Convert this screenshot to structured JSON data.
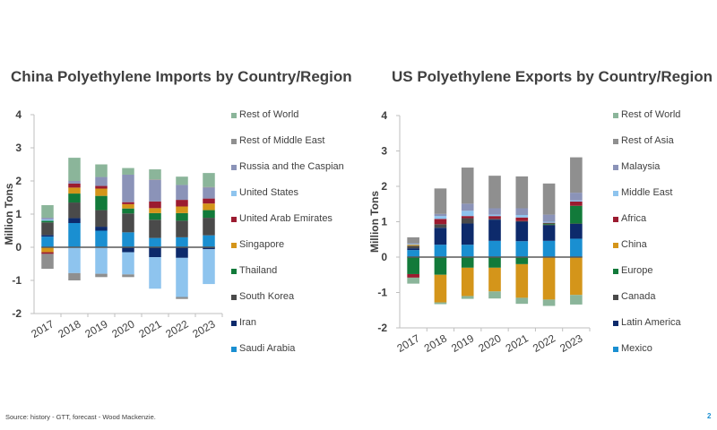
{
  "chart_data": [
    {
      "type": "bar",
      "stacked": true,
      "title": "China Polyethylene Imports by Country/Region",
      "ylabel": "Million Tons",
      "xlabel": "",
      "ylim": [
        -2,
        4
      ],
      "yticks": [
        "-2",
        "-1",
        "0",
        "1",
        "2",
        "3",
        "4"
      ],
      "grid": false,
      "legend_position": "right",
      "categories": [
        "2017",
        "2018",
        "2019",
        "2020",
        "2021",
        "2022",
        "2023"
      ],
      "series": [
        {
          "name": "Saudi Arabia",
          "color": "#1a8fd1",
          "values": [
            0.32,
            0.73,
            0.5,
            0.45,
            0.28,
            0.3,
            0.36
          ]
        },
        {
          "name": "Iran",
          "color": "#0d2a6b",
          "values": [
            0.05,
            0.15,
            0.12,
            -0.15,
            -0.3,
            -0.32,
            -0.06
          ]
        },
        {
          "name": "South Korea",
          "color": "#4a4a4a",
          "values": [
            0.38,
            0.47,
            0.5,
            0.57,
            0.55,
            0.5,
            0.53
          ]
        },
        {
          "name": "Thailand",
          "color": "#127a3a",
          "values": [
            0.05,
            0.27,
            0.43,
            0.15,
            0.2,
            0.23,
            0.23
          ]
        },
        {
          "name": "Singapore",
          "color": "#d4951a",
          "values": [
            -0.15,
            0.18,
            0.22,
            0.13,
            0.15,
            0.2,
            0.2
          ]
        },
        {
          "name": "United Arab Emirates",
          "color": "#9b1b30",
          "values": [
            -0.05,
            0.12,
            0.08,
            0.06,
            0.2,
            0.2,
            0.15
          ]
        },
        {
          "name": "United States",
          "color": "#8ec4ee",
          "values": [
            0.04,
            -0.78,
            -0.8,
            -0.67,
            -0.95,
            -1.18,
            -1.05
          ]
        },
        {
          "name": "Russia and the Caspian",
          "color": "#8b93b8",
          "values": [
            0.05,
            0.08,
            0.27,
            0.83,
            0.65,
            0.45,
            0.33
          ]
        },
        {
          "name": "Rest of Middle East",
          "color": "#8f8f8f",
          "values": [
            -0.45,
            -0.22,
            -0.1,
            -0.08,
            0.02,
            -0.06,
            0.02
          ]
        },
        {
          "name": "Rest of World",
          "color": "#8bb59a",
          "values": [
            0.38,
            0.7,
            0.38,
            0.2,
            0.3,
            0.25,
            0.42
          ]
        }
      ]
    },
    {
      "type": "bar",
      "stacked": true,
      "title": "US Polyethylene Exports by Country/Region",
      "ylabel": "Million Tons",
      "xlabel": "",
      "ylim": [
        -2,
        4
      ],
      "yticks": [
        "-2",
        "-1",
        "0",
        "1",
        "2",
        "3",
        "4"
      ],
      "grid": false,
      "legend_position": "right",
      "categories": [
        "2017",
        "2018",
        "2019",
        "2020",
        "2021",
        "2022",
        "2023"
      ],
      "series": [
        {
          "name": "Mexico",
          "color": "#1a8fd1",
          "values": [
            0.2,
            0.35,
            0.35,
            0.46,
            0.45,
            0.46,
            0.52
          ]
        },
        {
          "name": "Latin America",
          "color": "#0d2a6b",
          "values": [
            0.05,
            0.48,
            0.6,
            0.6,
            0.55,
            0.44,
            0.42
          ]
        },
        {
          "name": "Canada",
          "color": "#4a4a4a",
          "values": [
            0.07,
            0.1,
            0.15,
            0.02,
            0.02,
            0.02,
            0.01
          ]
        },
        {
          "name": "Europe",
          "color": "#127a3a",
          "values": [
            -0.48,
            -0.5,
            -0.3,
            -0.3,
            -0.2,
            0.03,
            0.5
          ]
        },
        {
          "name": "China",
          "color": "#d4951a",
          "values": [
            0.03,
            -0.78,
            -0.8,
            -0.67,
            -0.95,
            -1.2,
            -1.07
          ]
        },
        {
          "name": "Africa",
          "color": "#9b1b30",
          "values": [
            -0.1,
            0.15,
            0.06,
            0.08,
            0.1,
            0.02,
            0.12
          ]
        },
        {
          "name": "Middle East",
          "color": "#8ec4ee",
          "values": [
            0.02,
            0.08,
            0.15,
            0.04,
            0.07,
            0.03,
            0.03
          ]
        },
        {
          "name": "Malaysia",
          "color": "#8b93b8",
          "values": [
            0.02,
            0.06,
            0.2,
            0.18,
            0.19,
            0.2,
            0.22
          ]
        },
        {
          "name": "Rest of Asia",
          "color": "#8f8f8f",
          "values": [
            0.17,
            0.72,
            1.02,
            0.92,
            0.9,
            0.88,
            1.0
          ]
        },
        {
          "name": "Rest of World",
          "color": "#8bb59a",
          "values": [
            -0.17,
            -0.05,
            -0.08,
            -0.2,
            -0.17,
            -0.18,
            -0.27
          ]
        }
      ]
    }
  ],
  "footer": {
    "source": "Source: history - GTT,  forecast - Wood Mackenzie.",
    "page_number": "2"
  }
}
